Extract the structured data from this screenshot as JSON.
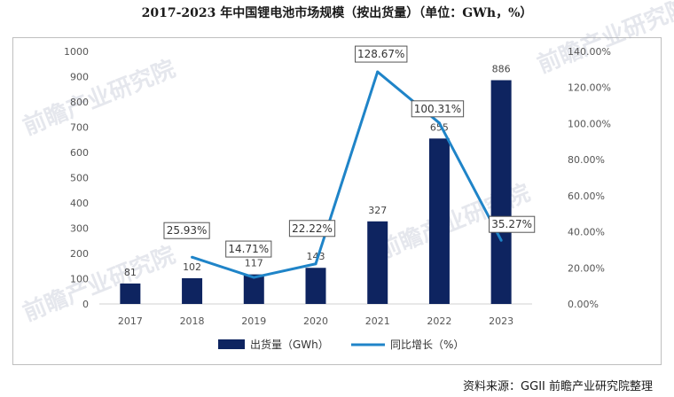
{
  "chart_data": {
    "type": "bar",
    "title": "2017-2023 年中国锂电池市场规模（按出货量）（单位：GWh，%）",
    "categories": [
      "2017",
      "2018",
      "2019",
      "2020",
      "2021",
      "2022",
      "2023"
    ],
    "series": [
      {
        "name": "出货量（GWh）",
        "type": "bar",
        "axis": "left",
        "values": [
          81,
          102,
          117,
          143,
          327,
          655,
          886
        ],
        "labels": [
          "81",
          "102",
          "117",
          "143",
          "327",
          "655",
          "886"
        ]
      },
      {
        "name": "同比增长（%）",
        "type": "line",
        "axis": "right",
        "values": [
          null,
          25.93,
          14.71,
          22.22,
          128.67,
          100.31,
          35.27
        ],
        "labels": [
          "",
          "25.93%",
          "14.71%",
          "22.22%",
          "128.67%",
          "100.31%",
          "35.27%"
        ]
      }
    ],
    "y_left": {
      "min": 0,
      "max": 1000,
      "step": 100,
      "ticks": [
        "0",
        "100",
        "200",
        "300",
        "400",
        "500",
        "600",
        "700",
        "800",
        "900",
        "1000"
      ]
    },
    "y_right": {
      "min": 0,
      "max": 140,
      "step": 20,
      "ticks": [
        "0.00%",
        "20.00%",
        "40.00%",
        "60.00%",
        "80.00%",
        "100.00%",
        "120.00%",
        "140.00%"
      ]
    },
    "grid": false,
    "legend_position": "bottom",
    "colors": {
      "bar": "#0e2460",
      "line": "#1f84c8"
    }
  },
  "source": "资料来源：GGII  前瞻产业研究院整理",
  "watermark": "前瞻产业研究院"
}
